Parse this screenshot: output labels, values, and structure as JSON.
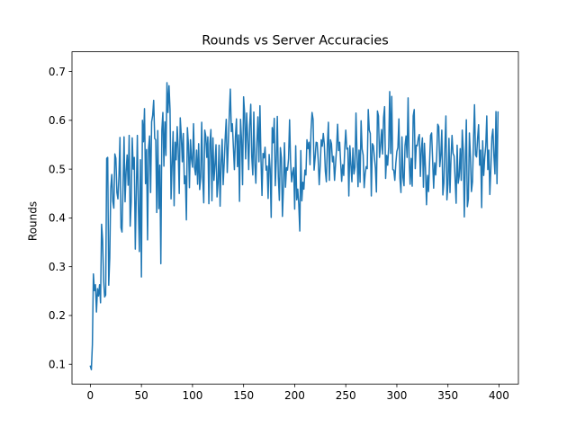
{
  "chart_data": {
    "type": "line",
    "title": "Rounds vs Server Accuracies",
    "xlabel": "",
    "ylabel": "Rounds",
    "xlim": [
      -17.95,
      418.95
    ],
    "ylim": [
      0.0595,
      0.7405
    ],
    "xticks": [
      0,
      50,
      100,
      150,
      200,
      250,
      300,
      350,
      400
    ],
    "yticks": [
      0.1,
      0.2,
      0.3,
      0.4,
      0.5,
      0.6,
      0.7
    ],
    "grid": false,
    "legend": "none",
    "color": "#1f77b4",
    "series": [
      {
        "x": [
          0,
          1,
          2,
          3,
          4,
          5,
          6,
          7,
          8,
          9,
          10,
          11,
          12,
          13,
          14,
          15,
          16,
          17,
          18,
          19,
          20,
          21,
          22,
          23,
          24,
          25,
          26,
          27,
          28,
          29,
          30,
          31,
          32,
          33,
          34,
          35,
          36,
          37,
          38,
          39,
          40,
          41,
          42,
          43,
          44,
          45,
          46,
          47,
          48,
          49,
          50,
          51,
          52,
          53,
          54,
          55,
          56,
          57,
          58,
          59,
          60,
          61,
          62,
          63,
          64,
          65,
          66,
          67,
          68,
          69,
          70,
          71,
          72,
          73,
          74,
          75,
          76,
          77,
          78,
          79,
          80,
          81,
          82,
          83,
          84,
          85,
          86,
          87,
          88,
          89,
          90,
          91,
          92,
          93,
          94,
          95,
          96,
          97,
          98,
          99,
          100,
          101,
          102,
          103,
          104,
          105,
          106,
          107,
          108,
          109,
          110,
          111,
          112,
          113,
          114,
          115,
          116,
          117,
          118,
          119,
          120,
          121,
          122,
          123,
          124,
          125,
          126,
          127,
          128,
          129,
          130,
          131,
          132,
          133,
          134,
          135,
          136,
          137,
          138,
          139,
          140,
          141,
          142,
          143,
          144,
          145,
          146,
          147,
          148,
          149,
          150,
          151,
          152,
          153,
          154,
          155,
          156,
          157,
          158,
          159,
          160,
          161,
          162,
          163,
          164,
          165,
          166,
          167,
          168,
          169,
          170,
          171,
          172,
          173,
          174,
          175,
          176,
          177,
          178,
          179,
          180,
          181,
          182,
          183,
          184,
          185,
          186,
          187,
          188,
          189,
          190,
          191,
          192,
          193,
          194,
          195,
          196,
          197,
          198,
          199,
          200,
          201,
          202,
          203,
          204,
          205,
          206,
          207,
          208,
          209,
          210,
          211,
          212,
          213,
          214,
          215,
          216,
          217,
          218,
          219,
          220,
          221,
          222,
          223,
          224,
          225,
          226,
          227,
          228,
          229,
          230,
          231,
          232,
          233,
          234,
          235,
          236,
          237,
          238,
          239,
          240,
          241,
          242,
          243,
          244,
          245,
          246,
          247,
          248,
          249,
          250,
          251,
          252,
          253,
          254,
          255,
          256,
          257,
          258,
          259,
          260,
          261,
          262,
          263,
          264,
          265,
          266,
          267,
          268,
          269,
          270,
          271,
          272,
          273,
          274,
          275,
          276,
          277,
          278,
          279,
          280,
          281,
          282,
          283,
          284,
          285,
          286,
          287,
          288,
          289,
          290,
          291,
          292,
          293,
          294,
          295,
          296,
          297,
          298,
          299,
          300,
          301,
          302,
          303,
          304,
          305,
          306,
          307,
          308,
          309,
          310,
          311,
          312,
          313,
          314,
          315,
          316,
          317,
          318,
          319,
          320,
          321,
          322,
          323,
          324,
          325,
          326,
          327,
          328,
          329,
          330,
          331,
          332,
          333,
          334,
          335,
          336,
          337,
          338,
          339,
          340,
          341,
          342,
          343,
          344,
          345,
          346,
          347,
          348,
          349,
          350,
          351,
          352,
          353,
          354,
          355,
          356,
          357,
          358,
          359,
          360,
          361,
          362,
          363,
          364,
          365,
          366,
          367,
          368,
          369,
          370,
          371,
          372,
          373,
          374,
          375,
          376,
          377,
          378,
          379,
          380,
          381,
          382,
          383,
          384,
          385,
          386,
          387,
          388,
          389,
          390,
          391,
          392,
          393,
          394,
          395,
          396,
          397,
          398,
          399
        ],
        "y": [
          0.096,
          0.089,
          0.14,
          0.285,
          0.251,
          0.263,
          0.207,
          0.255,
          0.24,
          0.263,
          0.226,
          0.387,
          0.356,
          0.272,
          0.238,
          0.242,
          0.522,
          0.524,
          0.262,
          0.318,
          0.461,
          0.489,
          0.434,
          0.42,
          0.531,
          0.522,
          0.452,
          0.439,
          0.486,
          0.565,
          0.38,
          0.371,
          0.463,
          0.566,
          0.433,
          0.495,
          0.529,
          0.467,
          0.569,
          0.383,
          0.433,
          0.564,
          0.5,
          0.524,
          0.336,
          0.452,
          0.569,
          0.425,
          0.331,
          0.519,
          0.279,
          0.6,
          0.556,
          0.624,
          0.47,
          0.54,
          0.355,
          0.543,
          0.568,
          0.452,
          0.597,
          0.61,
          0.641,
          0.563,
          0.56,
          0.411,
          0.579,
          0.419,
          0.508,
          0.306,
          0.58,
          0.616,
          0.506,
          0.597,
          0.528,
          0.677,
          0.616,
          0.671,
          0.622,
          0.439,
          0.509,
          0.577,
          0.425,
          0.555,
          0.519,
          0.587,
          0.542,
          0.45,
          0.605,
          0.568,
          0.515,
          0.573,
          0.47,
          0.486,
          0.396,
          0.585,
          0.55,
          0.462,
          0.56,
          0.521,
          0.504,
          0.593,
          0.503,
          0.488,
          0.539,
          0.469,
          0.552,
          0.458,
          0.484,
          0.596,
          0.481,
          0.431,
          0.58,
          0.567,
          0.524,
          0.566,
          0.429,
          0.552,
          0.581,
          0.435,
          0.564,
          0.477,
          0.509,
          0.55,
          0.443,
          0.472,
          0.549,
          0.424,
          0.513,
          0.561,
          0.468,
          0.512,
          0.563,
          0.602,
          0.493,
          0.55,
          0.612,
          0.664,
          0.577,
          0.593,
          0.545,
          0.499,
          0.566,
          0.603,
          0.505,
          0.57,
          0.434,
          0.602,
          0.559,
          0.468,
          0.648,
          0.614,
          0.521,
          0.615,
          0.563,
          0.499,
          0.59,
          0.633,
          0.525,
          0.488,
          0.617,
          0.511,
          0.471,
          0.554,
          0.607,
          0.515,
          0.63,
          0.522,
          0.446,
          0.532,
          0.523,
          0.545,
          0.498,
          0.506,
          0.44,
          0.53,
          0.5,
          0.401,
          0.585,
          0.554,
          0.604,
          0.466,
          0.519,
          0.608,
          0.484,
          0.436,
          0.544,
          0.523,
          0.403,
          0.463,
          0.554,
          0.463,
          0.503,
          0.498,
          0.521,
          0.601,
          0.514,
          0.474,
          0.493,
          0.503,
          0.418,
          0.548,
          0.437,
          0.459,
          0.428,
          0.373,
          0.538,
          0.435,
          0.473,
          0.459,
          0.498,
          0.488,
          0.56,
          0.542,
          0.555,
          0.509,
          0.58,
          0.616,
          0.602,
          0.498,
          0.523,
          0.555,
          0.554,
          0.519,
          0.468,
          0.508,
          0.56,
          0.547,
          0.573,
          0.551,
          0.496,
          0.474,
          0.55,
          0.596,
          0.477,
          0.56,
          0.552,
          0.515,
          0.526,
          0.477,
          0.51,
          0.543,
          0.592,
          0.538,
          0.555,
          0.514,
          0.475,
          0.509,
          0.487,
          0.542,
          0.58,
          0.541,
          0.543,
          0.445,
          0.548,
          0.509,
          0.474,
          0.543,
          0.49,
          0.504,
          0.615,
          0.531,
          0.464,
          0.539,
          0.473,
          0.599,
          0.541,
          0.529,
          0.462,
          0.491,
          0.505,
          0.501,
          0.622,
          0.58,
          0.573,
          0.445,
          0.552,
          0.548,
          0.525,
          0.502,
          0.453,
          0.619,
          0.609,
          0.524,
          0.547,
          0.581,
          0.531,
          0.606,
          0.628,
          0.481,
          0.528,
          0.508,
          0.545,
          0.659,
          0.532,
          0.649,
          0.499,
          0.498,
          0.477,
          0.512,
          0.536,
          0.544,
          0.603,
          0.481,
          0.452,
          0.566,
          0.483,
          0.466,
          0.549,
          0.568,
          0.524,
          0.646,
          0.521,
          0.469,
          0.522,
          0.465,
          0.609,
          0.622,
          0.501,
          0.549,
          0.548,
          0.564,
          0.571,
          0.485,
          0.541,
          0.564,
          0.463,
          0.553,
          0.502,
          0.427,
          0.487,
          0.454,
          0.513,
          0.569,
          0.574,
          0.519,
          0.461,
          0.513,
          0.488,
          0.527,
          0.592,
          0.587,
          0.505,
          0.529,
          0.58,
          0.447,
          0.471,
          0.545,
          0.609,
          0.437,
          0.47,
          0.563,
          0.452,
          0.524,
          0.569,
          0.532,
          0.527,
          0.479,
          0.43,
          0.549,
          0.471,
          0.485,
          0.542,
          0.477,
          0.58,
          0.538,
          0.402,
          0.513,
          0.601,
          0.423,
          0.439,
          0.574,
          0.526,
          0.454,
          0.474,
          0.558,
          0.632,
          0.529,
          0.525,
          0.563,
          0.591,
          0.508,
          0.539,
          0.421,
          0.558,
          0.487,
          0.524,
          0.547,
          0.609,
          0.499,
          0.539,
          0.448,
          0.501,
          0.566,
          0.582,
          0.527,
          0.49,
          0.618,
          0.47,
          0.617
        ]
      }
    ]
  }
}
